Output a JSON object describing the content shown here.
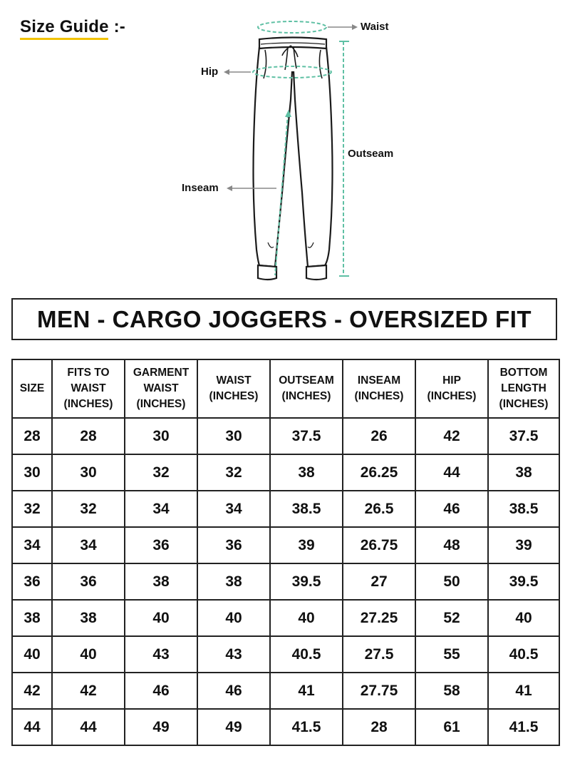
{
  "header": {
    "size_guide": "Size Guide :-"
  },
  "diagram": {
    "waist": "Waist",
    "hip": "Hip",
    "outseam": "Outseam",
    "inseam": "Inseam",
    "colors": {
      "measure": "#5fc0a4",
      "arrow": "#888888",
      "garment": "#1a1a1a"
    }
  },
  "product_title": "MEN - CARGO JOGGERS - OVERSIZED FIT",
  "table": {
    "headers": [
      [
        "SIZE"
      ],
      [
        "FITS TO",
        "WAIST",
        "(INCHES)"
      ],
      [
        "GARMENT",
        "WAIST",
        "(INCHES)"
      ],
      [
        "WAIST",
        "(INCHES)"
      ],
      [
        "OUTSEAM",
        "(INCHES)"
      ],
      [
        "INSEAM",
        "(INCHES)"
      ],
      [
        "HIP",
        "(INCHES)"
      ],
      [
        "BOTTOM",
        "LENGTH",
        "(INCHES)"
      ]
    ],
    "rows": [
      [
        "28",
        "28",
        "30",
        "30",
        "37.5",
        "26",
        "42",
        "37.5"
      ],
      [
        "30",
        "30",
        "32",
        "32",
        "38",
        "26.25",
        "44",
        "38"
      ],
      [
        "32",
        "32",
        "34",
        "34",
        "38.5",
        "26.5",
        "46",
        "38.5"
      ],
      [
        "34",
        "34",
        "36",
        "36",
        "39",
        "26.75",
        "48",
        "39"
      ],
      [
        "36",
        "36",
        "38",
        "38",
        "39.5",
        "27",
        "50",
        "39.5"
      ],
      [
        "38",
        "38",
        "40",
        "40",
        "40",
        "27.25",
        "52",
        "40"
      ],
      [
        "40",
        "40",
        "43",
        "43",
        "40.5",
        "27.5",
        "55",
        "40.5"
      ],
      [
        "42",
        "42",
        "46",
        "46",
        "41",
        "27.75",
        "58",
        "41"
      ],
      [
        "44",
        "44",
        "49",
        "49",
        "41.5",
        "28",
        "61",
        "41.5"
      ]
    ]
  }
}
